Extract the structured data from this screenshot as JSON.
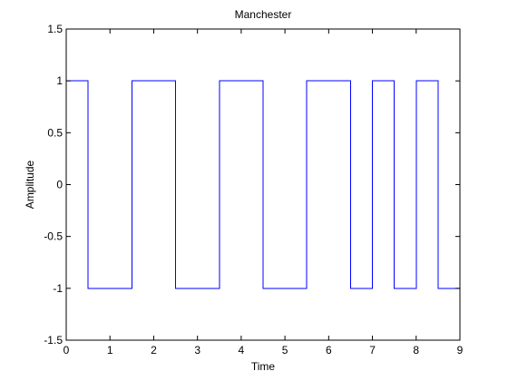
{
  "chart_data": {
    "type": "line",
    "title": "Manchester",
    "xlabel": "Time",
    "ylabel": "Amplitude",
    "xlim": [
      0,
      9
    ],
    "ylim": [
      -1.5,
      1.5
    ],
    "xticks": [
      0,
      1,
      2,
      3,
      4,
      5,
      6,
      7,
      8,
      9
    ],
    "yticks": [
      -1.5,
      -1,
      -0.5,
      0,
      0.5,
      1,
      1.5
    ],
    "grid": false,
    "series": [
      {
        "color": "#0000ff",
        "step": true,
        "x": [
          0,
          0.5,
          0.5,
          1.5,
          1.5,
          2.5,
          2.5,
          3.5,
          3.5,
          4.5,
          4.5,
          5.5,
          5.5,
          6.5,
          6.5,
          7,
          7,
          7.5,
          7.5,
          8,
          8,
          8.5,
          8.5,
          9
        ],
        "y": [
          1,
          1,
          -1,
          -1,
          1,
          1,
          -1,
          -1,
          1,
          1,
          -1,
          -1,
          1,
          1,
          -1,
          -1,
          1,
          1,
          -1,
          -1,
          1,
          1,
          -1,
          -1
        ]
      }
    ]
  }
}
